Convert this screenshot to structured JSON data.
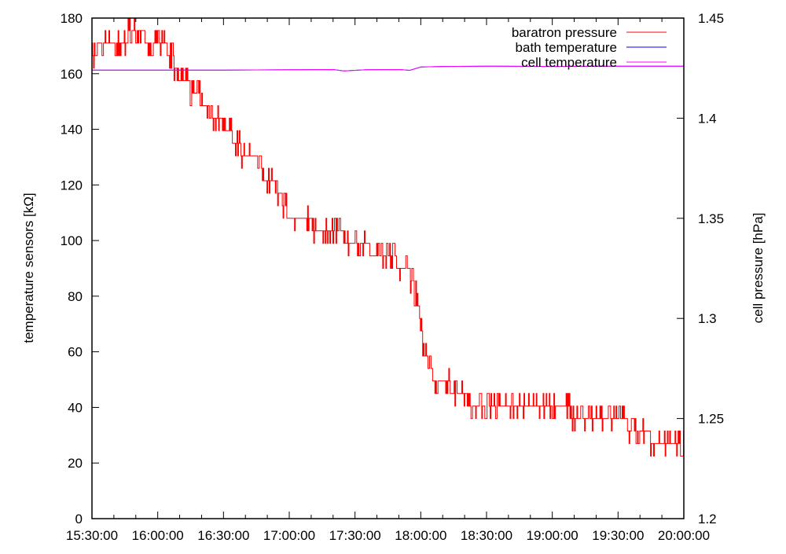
{
  "chart_data": {
    "type": "line",
    "xlabel": "",
    "ylabel_left": "temperature sensors [kΩ]",
    "ylabel_right": "cell pressure [hPa]",
    "xlim_minutes": [
      0,
      270
    ],
    "x_start": "15:30:00",
    "ylim_left": [
      0,
      180
    ],
    "ylim_right": [
      1.2,
      1.45
    ],
    "x_ticks": [
      "15:30:00",
      "16:00:00",
      "16:30:00",
      "17:00:00",
      "17:30:00",
      "18:00:00",
      "18:30:00",
      "19:00:00",
      "19:30:00",
      "20:00:00"
    ],
    "y_ticks_left": [
      "0",
      "20",
      "40",
      "60",
      "80",
      "100",
      "120",
      "140",
      "160",
      "180"
    ],
    "y_ticks_right": [
      "1.2",
      "1.25",
      "1.3",
      "1.35",
      "1.4",
      "1.45"
    ],
    "grid": false,
    "legend_position": "top-right",
    "series": [
      {
        "name": "baratron pressure",
        "axis": "right",
        "color": "#ff0000",
        "noise_step": 0.00625,
        "x_minutes": [
          0,
          5,
          10,
          20,
          30,
          35,
          40,
          45,
          50,
          55,
          60,
          65,
          70,
          75,
          80,
          85,
          90,
          95,
          100,
          105,
          110,
          115,
          120,
          125,
          130,
          135,
          140,
          145,
          148,
          150,
          152,
          155,
          160,
          165,
          170,
          180,
          190,
          200,
          210,
          220,
          230,
          240,
          250,
          255,
          260,
          270
        ],
        "values": [
          1.4333,
          1.4361,
          1.4389,
          1.4417,
          1.4389,
          1.4333,
          1.4222,
          1.4153,
          1.4083,
          1.4028,
          1.3958,
          1.3889,
          1.3819,
          1.3764,
          1.3694,
          1.3625,
          1.3514,
          1.3486,
          1.3472,
          1.3431,
          1.3417,
          1.3403,
          1.3375,
          1.3347,
          1.3333,
          1.3292,
          1.3278,
          1.3222,
          1.3083,
          1.2944,
          1.2806,
          1.2722,
          1.2694,
          1.2639,
          1.2597,
          1.2583,
          1.2583,
          1.2569,
          1.2556,
          1.2528,
          1.2514,
          1.2486,
          1.2444,
          1.2403,
          1.2389,
          1.2389
        ]
      },
      {
        "name": "bath temperature",
        "axis": "left",
        "color": "#0000ff",
        "x_minutes": [
          0,
          30,
          60,
          90,
          110,
          115,
          125,
          140,
          145,
          150,
          160,
          180,
          210,
          240,
          270
        ],
        "values": [
          161.3,
          161.3,
          161.3,
          161.4,
          161.5,
          161.0,
          161.4,
          161.5,
          161.2,
          162.4,
          162.6,
          162.7,
          162.6,
          162.7,
          162.7
        ]
      },
      {
        "name": "cell temperature",
        "axis": "left",
        "color": "#ff00ff",
        "x_minutes": [
          0,
          30,
          60,
          90,
          110,
          115,
          125,
          140,
          145,
          150,
          160,
          180,
          210,
          240,
          270
        ],
        "values": [
          161.3,
          161.3,
          161.3,
          161.4,
          161.5,
          161.0,
          161.4,
          161.5,
          161.2,
          162.4,
          162.6,
          162.7,
          162.6,
          162.7,
          162.7
        ]
      }
    ]
  }
}
